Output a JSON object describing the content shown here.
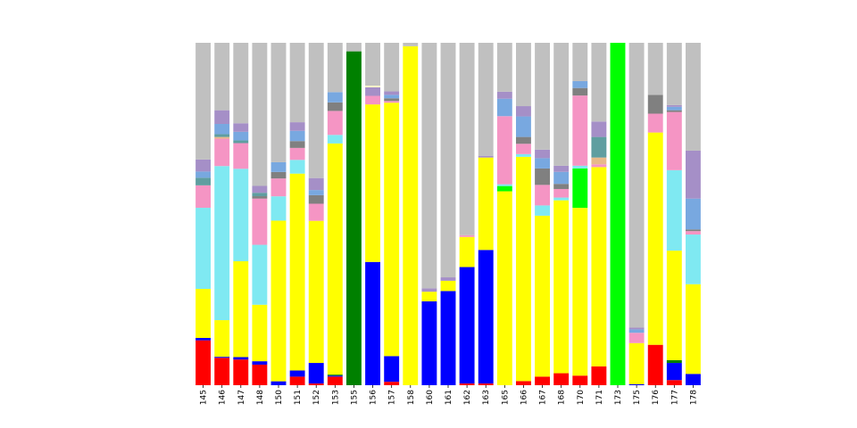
{
  "chart_data": {
    "type": "bar",
    "stacked": true,
    "normalized": true,
    "title": "",
    "xlabel": "",
    "ylabel": "",
    "ylim": [
      0,
      1
    ],
    "grid": false,
    "legend": "none",
    "categories": [
      "145",
      "146",
      "147",
      "148",
      "150",
      "151",
      "152",
      "153",
      "155",
      "156",
      "157",
      "158",
      "160",
      "161",
      "162",
      "163",
      "165",
      "166",
      "167",
      "168",
      "170",
      "171",
      "173",
      "175",
      "176",
      "177",
      "178"
    ],
    "series": [
      {
        "color": "#ff0000",
        "values": [
          0.13,
          0.08,
          0.075,
          0.06,
          0.0,
          0.025,
          0.005,
          0.025,
          0,
          0,
          0.01,
          0,
          0,
          0,
          0.005,
          0.005,
          0,
          0.012,
          0.025,
          0.035,
          0.028,
          0.055,
          0,
          0,
          0.118,
          0.015,
          0
        ]
      },
      {
        "color": "#0000ff",
        "values": [
          0.007,
          0.003,
          0.007,
          0.01,
          0.012,
          0.018,
          0.06,
          0.003,
          0,
          0.36,
          0.075,
          0,
          0.245,
          0.275,
          0.34,
          0.39,
          0,
          0,
          0,
          0,
          0,
          0,
          0,
          0.003,
          0,
          0.05,
          0.033
        ]
      },
      {
        "color": "#008000",
        "values": [
          0,
          0,
          0,
          0,
          0,
          0,
          0,
          0.003,
          0.975,
          0,
          0,
          0,
          0,
          0,
          0,
          0,
          0,
          0,
          0,
          0,
          0,
          0,
          0,
          0,
          0,
          0.008,
          0
        ]
      },
      {
        "color": "#ffff00",
        "values": [
          0.142,
          0.107,
          0.28,
          0.165,
          0.495,
          0.575,
          0.415,
          0.675,
          0,
          0.46,
          0.74,
          0.99,
          0.028,
          0.03,
          0.088,
          0.27,
          0.555,
          0.655,
          0.47,
          0.505,
          0.49,
          0.582,
          0,
          0.12,
          0.62,
          0.32,
          0.262
        ]
      },
      {
        "color": "#00ff00",
        "values": [
          0,
          0,
          0,
          0,
          0,
          0,
          0,
          0,
          0,
          0,
          0,
          0,
          0,
          0,
          0,
          0,
          0.015,
          0,
          0,
          0,
          0.115,
          0,
          1.0,
          0,
          0,
          0,
          0
        ]
      },
      {
        "color": "#7fe9f2",
        "values": [
          0.235,
          0.45,
          0.27,
          0.175,
          0.075,
          0.04,
          0,
          0.025,
          0,
          0,
          0,
          0,
          0,
          0,
          0,
          0,
          0.005,
          0.008,
          0.03,
          0.008,
          0.008,
          0,
          0,
          0,
          0,
          0.235,
          0.145
        ]
      },
      {
        "color": "#f595c4",
        "values": [
          0.065,
          0.08,
          0.075,
          0.135,
          0.055,
          0.035,
          0.05,
          0.07,
          0,
          0.025,
          0.005,
          0,
          0,
          0,
          0.005,
          0,
          0.195,
          0.03,
          0.06,
          0.025,
          0.205,
          0.008,
          0,
          0.03,
          0.055,
          0.17,
          0.01
        ]
      },
      {
        "color": "#e8b98a",
        "values": [
          0,
          0.005,
          0,
          0,
          0,
          0,
          0,
          0,
          0,
          0,
          0,
          0,
          0,
          0,
          0,
          0,
          0,
          0,
          0,
          0,
          0,
          0.02,
          0,
          0,
          0,
          0,
          0
        ]
      },
      {
        "color": "#808080",
        "values": [
          0,
          0,
          0,
          0.007,
          0.02,
          0.02,
          0.025,
          0.025,
          0,
          0,
          0.008,
          0,
          0,
          0,
          0,
          0,
          0,
          0.02,
          0.048,
          0.015,
          0.022,
          0,
          0,
          0,
          0.055,
          0.005,
          0.005
        ]
      },
      {
        "color": "#5f9ea0",
        "values": [
          0.022,
          0.008,
          0.008,
          0.01,
          0,
          0,
          0,
          0,
          0,
          0,
          0,
          0,
          0,
          0,
          0,
          0,
          0,
          0,
          0,
          0,
          0,
          0.06,
          0,
          0,
          0,
          0,
          0
        ]
      },
      {
        "color": "#78a8e0",
        "values": [
          0.018,
          0.03,
          0.025,
          0,
          0.03,
          0.03,
          0.015,
          0.03,
          0,
          0,
          0.01,
          0,
          0,
          0,
          0,
          0,
          0.05,
          0.06,
          0.03,
          0.035,
          0.02,
          0,
          0,
          0.01,
          0,
          0.01,
          0.09
        ]
      },
      {
        "color": "#a58fc7",
        "values": [
          0.035,
          0.04,
          0.025,
          0.02,
          0,
          0.025,
          0.035,
          0,
          0,
          0.025,
          0.01,
          0,
          0.01,
          0.01,
          0,
          0.005,
          0.02,
          0.03,
          0.025,
          0.018,
          0,
          0.045,
          0,
          0.005,
          0,
          0.005,
          0.14
        ]
      },
      {
        "color": "#fffac8",
        "values": [
          0,
          0,
          0,
          0,
          0,
          0,
          0,
          0,
          0,
          0.005,
          0,
          0,
          0,
          0,
          0,
          0,
          0,
          0,
          0,
          0,
          0,
          0,
          0,
          0,
          0,
          0,
          0
        ]
      },
      {
        "color": "#c0c0c0",
        "values": [
          0.338,
          0.197,
          0.235,
          0.418,
          0.368,
          0.232,
          0.395,
          0.144,
          0.025,
          0.125,
          0.142,
          0.01,
          0.717,
          0.685,
          0.562,
          0.33,
          0.14,
          0.185,
          0.312,
          0.359,
          0.112,
          0.23,
          0,
          0.832,
          0.152,
          0.182,
          0.315
        ]
      }
    ]
  }
}
